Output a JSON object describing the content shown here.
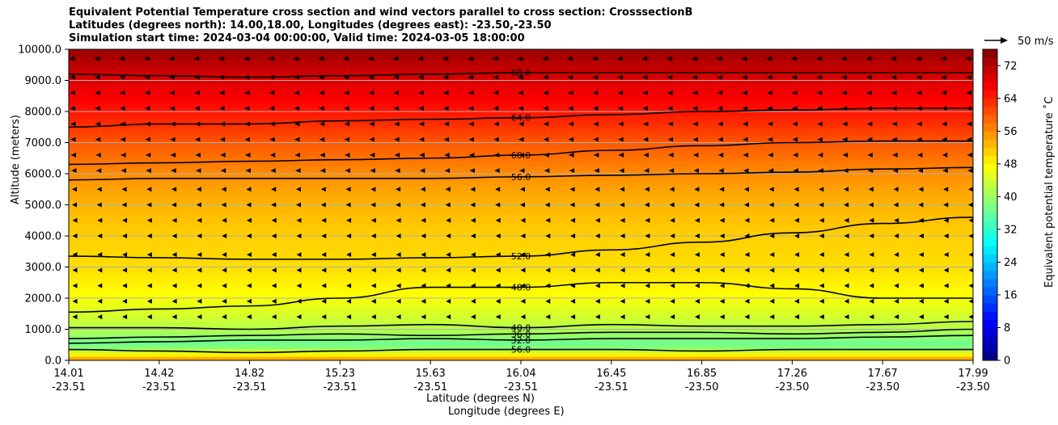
{
  "title": {
    "line1": "Equivalent Potential Temperature cross section and wind vectors parallel to cross section: CrosssectionB",
    "line2": "Latitudes (degrees north): 14.00,18.00, Longitudes (degrees east): -23.50,-23.50",
    "line3": "Simulation start time: 2024-03-04 00:00:00, Valid time: 2024-03-05 18:00:00"
  },
  "chart_data": {
    "type": "heatmap",
    "ylabel": "Altitude (meters)",
    "xlabel_lat": "Latitude (degrees N)",
    "xlabel_lon": "Longitude (degrees E)",
    "ylim": [
      0,
      10000
    ],
    "y_ticks": [
      "0.0",
      "1000.0",
      "2000.0",
      "3000.0",
      "4000.0",
      "5000.0",
      "6000.0",
      "7000.0",
      "8000.0",
      "9000.0",
      "10000.0"
    ],
    "x_ticks_lat": [
      "14.01",
      "14.42",
      "14.82",
      "15.23",
      "15.63",
      "16.04",
      "16.45",
      "16.85",
      "17.26",
      "17.67",
      "17.99"
    ],
    "x_ticks_lon": [
      "-23.51",
      "-23.51",
      "-23.51",
      "-23.51",
      "-23.51",
      "-23.51",
      "-23.51",
      "-23.50",
      "-23.50",
      "-23.50",
      "-23.50"
    ],
    "grid": "horizontal",
    "colorbar": {
      "label": "Equivalent potential temperature ˚C",
      "range": [
        0,
        76
      ],
      "ticks": [
        "0",
        "8",
        "16",
        "24",
        "32",
        "40",
        "48",
        "56",
        "64",
        "72"
      ],
      "colormap": "jet"
    },
    "theta_e_profile": [
      {
        "altitude": 0,
        "value": 56
      },
      {
        "altitude": 500,
        "value": 36
      },
      {
        "altitude": 1000,
        "value": 42
      },
      {
        "altitude": 2000,
        "value": 47
      },
      {
        "altitude": 3000,
        "value": 50
      },
      {
        "altitude": 4000,
        "value": 51
      },
      {
        "altitude": 5000,
        "value": 53
      },
      {
        "altitude": 6000,
        "value": 56
      },
      {
        "altitude": 7000,
        "value": 60
      },
      {
        "altitude": 8000,
        "value": 65
      },
      {
        "altitude": 9000,
        "value": 69
      },
      {
        "altitude": 10000,
        "value": 74
      }
    ],
    "contours": [
      {
        "label": "68.0",
        "levels": [
          9200,
          9150,
          9100,
          9150,
          9200,
          9250,
          9250,
          9250,
          9250,
          9250,
          9250
        ]
      },
      {
        "label": "64.0",
        "levels": [
          7500,
          7600,
          7600,
          7700,
          7750,
          7800,
          7900,
          8000,
          8050,
          8100,
          8100
        ]
      },
      {
        "label": "60.0",
        "levels": [
          6300,
          6350,
          6400,
          6450,
          6500,
          6600,
          6750,
          6900,
          7000,
          7050,
          7050
        ]
      },
      {
        "label": "56.0",
        "levels": [
          5800,
          5850,
          5850,
          5850,
          5850,
          5900,
          5950,
          6000,
          6050,
          6150,
          6200
        ]
      },
      {
        "label": "52.0",
        "levels": [
          3350,
          3300,
          3250,
          3250,
          3300,
          3350,
          3550,
          3800,
          4100,
          4400,
          4600
        ]
      },
      {
        "label": "48.0",
        "levels": [
          1550,
          1650,
          1750,
          2000,
          2350,
          2350,
          2500,
          2500,
          2300,
          2000,
          2000
        ]
      },
      {
        "label": "40.0",
        "levels": [
          1050,
          1050,
          1000,
          1100,
          1150,
          1050,
          1150,
          1100,
          1100,
          1150,
          1250
        ]
      },
      {
        "label": "36.0",
        "levels": [
          700,
          750,
          800,
          850,
          800,
          850,
          900,
          900,
          850,
          900,
          1000
        ]
      },
      {
        "label": "32.0",
        "levels": [
          550,
          600,
          650,
          650,
          700,
          650,
          700,
          700,
          700,
          750,
          800
        ]
      },
      {
        "label": "56.0",
        "levels": [
          350,
          300,
          250,
          300,
          350,
          350,
          350,
          300,
          350,
          350,
          350
        ]
      }
    ],
    "wind_reference": {
      "label": "50 m/s",
      "speed": 50
    },
    "wind_profile": [
      {
        "altitude": 9700,
        "speed": -8
      },
      {
        "altitude": 9100,
        "speed": -7
      },
      {
        "altitude": 8600,
        "speed": -6
      },
      {
        "altitude": 8100,
        "speed": -6
      },
      {
        "altitude": 7600,
        "speed": -5
      },
      {
        "altitude": 7100,
        "speed": -5
      },
      {
        "altitude": 6600,
        "speed": -4
      },
      {
        "altitude": 6100,
        "speed": -3
      },
      {
        "altitude": 5500,
        "speed": -2
      },
      {
        "altitude": 5000,
        "speed": -2
      },
      {
        "altitude": 4500,
        "speed": -1
      },
      {
        "altitude": 4000,
        "speed": -1
      },
      {
        "altitude": 3400,
        "speed": -1
      },
      {
        "altitude": 2900,
        "speed": -1
      },
      {
        "altitude": 2400,
        "speed": -1
      },
      {
        "altitude": 1900,
        "speed": -1
      },
      {
        "altitude": 1400,
        "speed": -1
      }
    ]
  }
}
